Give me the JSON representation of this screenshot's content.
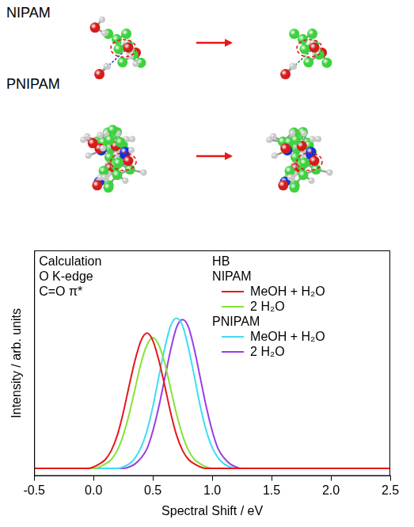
{
  "diagram": {
    "rows": [
      {
        "label": "NIPAM"
      },
      {
        "label": "PNIPAM"
      }
    ]
  },
  "chart_data": {
    "type": "line",
    "x_label": "Spectral Shift / eV",
    "y_label": "Intensity / arb. units",
    "annotations": [
      "Calculation",
      "O K-edge",
      "C=O π*"
    ],
    "legend_title": "HB",
    "legend": "upper right",
    "grid": false,
    "tick_labels": "x",
    "xlim": [
      -0.5,
      2.5
    ],
    "xticks": [
      -0.5,
      {
        "value": 0,
        "label": "0.0"
      },
      0.5,
      {
        "value": 1,
        "label": "1.0"
      },
      1.5,
      {
        "value": 2,
        "label": "2.0"
      },
      2.5
    ],
    "ylim": [
      -0.05,
      1.45
    ],
    "x": [
      -0.5,
      -0.1,
      -0.05,
      0,
      0.05,
      0.1,
      0.15,
      0.2,
      0.25,
      0.3,
      0.35,
      0.4,
      0.45,
      0.5,
      0.55,
      0.6,
      0.65,
      0.7,
      0.75,
      0.8,
      0.85,
      0.9,
      0.95,
      1,
      1.05,
      1.1,
      1.15,
      1.2,
      1.25,
      1.3,
      1.35,
      1.4,
      2.5
    ],
    "series": [
      {
        "name": "MeOH + H₂O",
        "group": "NIPAM",
        "color": "#e8161b",
        "values": [
          0,
          0,
          0,
          0.01,
          0.03,
          0.06,
          0.12,
          0.22,
          0.37,
          0.55,
          0.72,
          0.85,
          0.9,
          0.85,
          0.72,
          0.55,
          0.37,
          0.22,
          0.12,
          0.06,
          0.03,
          0.01,
          0,
          0,
          0,
          0,
          0,
          0,
          0,
          0,
          0,
          0,
          0
        ]
      },
      {
        "name": "2 H₂O",
        "group": "NIPAM",
        "color": "#86e23a",
        "values": [
          0,
          0,
          0,
          0,
          0.01,
          0.03,
          0.06,
          0.12,
          0.22,
          0.36,
          0.53,
          0.7,
          0.82,
          0.87,
          0.82,
          0.7,
          0.53,
          0.36,
          0.22,
          0.12,
          0.06,
          0.03,
          0.01,
          0,
          0,
          0,
          0,
          0,
          0,
          0,
          0,
          0,
          0
        ]
      },
      {
        "name": "MeOH + H₂O",
        "group": "PNIPAM",
        "color": "#3fdcf5",
        "values": [
          0,
          0,
          0,
          0,
          0,
          0,
          0,
          0,
          0.01,
          0.03,
          0.07,
          0.14,
          0.25,
          0.41,
          0.61,
          0.8,
          0.95,
          1.0,
          0.95,
          0.8,
          0.61,
          0.41,
          0.25,
          0.14,
          0.07,
          0.03,
          0.01,
          0,
          0,
          0,
          0,
          0,
          0
        ]
      },
      {
        "name": "2 H₂O",
        "group": "PNIPAM",
        "color": "#9a3ee6",
        "values": [
          0,
          0,
          0,
          0,
          0,
          0,
          0,
          0,
          0,
          0.01,
          0.03,
          0.07,
          0.13,
          0.25,
          0.41,
          0.6,
          0.79,
          0.94,
          0.99,
          0.94,
          0.79,
          0.6,
          0.41,
          0.25,
          0.13,
          0.07,
          0.03,
          0.01,
          0,
          0,
          0,
          0,
          0
        ]
      }
    ]
  }
}
